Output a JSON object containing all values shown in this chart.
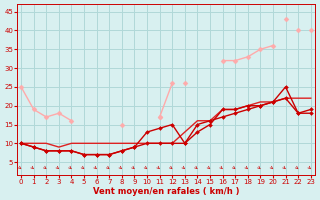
{
  "title": "",
  "xlabel": "Vent moyen/en rafales ( km/h )",
  "ylabel": "",
  "background_color": "#d8f0f0",
  "grid_color": "#b0d8d8",
  "x_values": [
    0,
    1,
    2,
    3,
    4,
    5,
    6,
    7,
    8,
    9,
    10,
    11,
    12,
    13,
    14,
    15,
    16,
    17,
    18,
    19,
    20,
    21,
    22,
    23
  ],
  "series": [
    {
      "y": [
        25,
        19,
        17,
        18,
        16,
        null,
        null,
        null,
        15,
        null,
        null,
        17,
        null,
        26,
        null,
        null,
        null,
        null,
        null,
        null,
        null,
        null,
        null,
        null
      ],
      "color": "#ffaaaa",
      "lw": 1.0,
      "marker": "D",
      "ms": 2.5
    },
    {
      "y": [
        null,
        null,
        null,
        null,
        null,
        null,
        null,
        null,
        null,
        null,
        null,
        17,
        26,
        null,
        null,
        null,
        32,
        32,
        33,
        35,
        36,
        null,
        40,
        null
      ],
      "color": "#ffaaaa",
      "lw": 1.0,
      "marker": "D",
      "ms": 2.5
    },
    {
      "y": [
        null,
        null,
        null,
        null,
        null,
        null,
        null,
        null,
        null,
        null,
        null,
        null,
        null,
        null,
        null,
        null,
        null,
        null,
        null,
        null,
        null,
        43,
        null,
        40
      ],
      "color": "#ffaaaa",
      "lw": 1.0,
      "marker": "D",
      "ms": 2.5
    },
    {
      "y": [
        10,
        10,
        10,
        9,
        10,
        10,
        10,
        10,
        10,
        10,
        10,
        10,
        10,
        13,
        16,
        16,
        19,
        19,
        20,
        21,
        21,
        22,
        22,
        22
      ],
      "color": "#dd2222",
      "lw": 1.0,
      "marker": "",
      "ms": 0
    },
    {
      "y": [
        10,
        9,
        8,
        8,
        8,
        7,
        7,
        7,
        8,
        9,
        10,
        10,
        10,
        10,
        13,
        15,
        19,
        19,
        20,
        20,
        21,
        22,
        18,
        18
      ],
      "color": "#cc0000",
      "lw": 1.0,
      "marker": "D",
      "ms": 2.0
    },
    {
      "y": [
        10,
        9,
        8,
        8,
        8,
        7,
        7,
        7,
        8,
        9,
        13,
        14,
        15,
        10,
        15,
        16,
        17,
        18,
        19,
        20,
        21,
        25,
        18,
        19
      ],
      "color": "#cc0000",
      "lw": 1.0,
      "marker": "D",
      "ms": 2.0
    }
  ],
  "yticks": [
    5,
    10,
    15,
    20,
    25,
    30,
    35,
    40,
    45
  ],
  "xticks": [
    0,
    1,
    2,
    3,
    4,
    5,
    6,
    7,
    8,
    9,
    10,
    11,
    12,
    13,
    14,
    15,
    16,
    17,
    18,
    19,
    20,
    21,
    22,
    23
  ],
  "ylim": [
    1.5,
    47
  ],
  "xlim": [
    -0.3,
    23.3
  ],
  "tick_color": "#cc0000",
  "spine_color": "#cc0000",
  "xlabel_color": "#cc0000",
  "xlabel_fontsize": 6,
  "tick_fontsize": 5
}
